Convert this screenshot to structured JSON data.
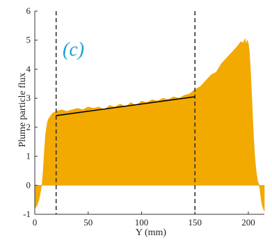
{
  "chart_data": {
    "type": "area",
    "title": "",
    "panel_label": "(c)",
    "xlabel": "Y (mm)",
    "ylabel": "Plume particle flux",
    "xlim": [
      0,
      215
    ],
    "ylim": [
      -1,
      6
    ],
    "xticks": [
      0,
      50,
      100,
      150,
      200
    ],
    "yticks": [
      -1,
      0,
      1,
      2,
      3,
      4,
      5,
      6
    ],
    "grid": false,
    "legend": "none",
    "series": [
      {
        "fill_color": "#F2A900",
        "x": [
          0,
          2,
          4,
          5,
          6,
          7,
          8,
          9,
          10,
          11,
          12,
          13,
          14,
          15,
          16,
          17,
          18,
          20,
          25,
          30,
          35,
          40,
          45,
          50,
          55,
          60,
          65,
          70,
          75,
          80,
          85,
          90,
          95,
          100,
          105,
          110,
          115,
          120,
          125,
          130,
          135,
          140,
          145,
          150,
          155,
          160,
          165,
          170,
          175,
          180,
          185,
          190,
          193,
          195,
          197,
          198,
          199,
          200,
          201,
          202,
          203,
          204,
          205,
          206,
          207,
          208,
          209,
          210,
          211,
          212,
          213,
          214,
          215
        ],
        "values": [
          -0.8,
          -0.7,
          -0.5,
          -0.3,
          -0.1,
          0.1,
          0.6,
          1.2,
          1.7,
          2.0,
          2.2,
          2.3,
          2.35,
          2.4,
          2.45,
          2.5,
          2.5,
          2.55,
          2.6,
          2.55,
          2.6,
          2.65,
          2.6,
          2.7,
          2.65,
          2.7,
          2.6,
          2.75,
          2.7,
          2.8,
          2.7,
          2.85,
          2.75,
          2.9,
          2.85,
          2.95,
          2.9,
          3.0,
          2.95,
          3.05,
          3.0,
          3.1,
          3.15,
          3.3,
          3.4,
          3.6,
          3.8,
          3.9,
          4.2,
          4.4,
          4.6,
          4.8,
          4.95,
          4.9,
          5.05,
          4.85,
          5.0,
          4.9,
          4.6,
          4.0,
          3.2,
          2.4,
          1.6,
          1.0,
          0.6,
          0.3,
          0.1,
          0.05,
          -0.2,
          -0.5,
          -0.7,
          -0.8,
          -0.9
        ]
      }
    ],
    "fit_line": {
      "x": [
        20,
        150
      ],
      "y": [
        2.4,
        3.05
      ],
      "color": "#000000"
    },
    "vertical_lines": {
      "x": [
        20,
        150
      ],
      "style": "dashed",
      "color": "#333333"
    },
    "panel_label_color": "#1E9FD0"
  }
}
